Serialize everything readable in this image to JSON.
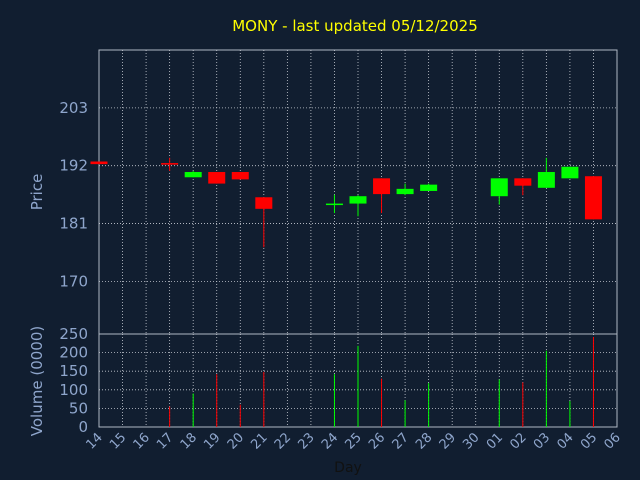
{
  "chart_data": [
    {
      "type": "candlestick",
      "title": "MONY - last updated 05/12/2025",
      "ylabel": "Price",
      "xlabel": "Day",
      "ylim": [
        160,
        214
      ],
      "yticks": [
        170,
        181,
        192,
        203
      ],
      "x": [
        "14",
        "15",
        "16",
        "17",
        "18",
        "19",
        "20",
        "21",
        "22",
        "23",
        "24",
        "25",
        "26",
        "27",
        "28",
        "29",
        "30",
        "01",
        "02",
        "03",
        "04",
        "05",
        "06"
      ],
      "up_color": "#00ff00",
      "down_color": "#ff0000",
      "grid": true,
      "candles": [
        {
          "day": "14",
          "open": 192.8,
          "high": 192.8,
          "low": 192.3,
          "close": 192.3
        },
        {
          "day": "17",
          "open": 192.5,
          "high": 193.5,
          "low": 191.0,
          "close": 192.2
        },
        {
          "day": "18",
          "open": 189.8,
          "high": 191.0,
          "low": 189.8,
          "close": 190.8
        },
        {
          "day": "19",
          "open": 190.8,
          "high": 190.8,
          "low": 188.6,
          "close": 188.6
        },
        {
          "day": "20",
          "open": 190.8,
          "high": 190.8,
          "low": 189.4,
          "close": 189.4
        },
        {
          "day": "21",
          "open": 186.0,
          "high": 186.0,
          "low": 176.5,
          "close": 183.8
        },
        {
          "day": "24",
          "open": 184.6,
          "high": 186.5,
          "low": 183.0,
          "close": 184.8
        },
        {
          "day": "25",
          "open": 184.8,
          "high": 186.4,
          "low": 182.4,
          "close": 186.2
        },
        {
          "day": "26",
          "open": 189.6,
          "high": 189.6,
          "low": 183.0,
          "close": 186.6
        },
        {
          "day": "27",
          "open": 186.6,
          "high": 188.6,
          "low": 186.4,
          "close": 187.6
        },
        {
          "day": "28",
          "open": 187.2,
          "high": 188.6,
          "low": 187.2,
          "close": 188.4
        },
        {
          "day": "01",
          "open": 186.2,
          "high": 189.6,
          "low": 184.6,
          "close": 189.6
        },
        {
          "day": "02",
          "open": 189.6,
          "high": 189.6,
          "low": 186.4,
          "close": 188.2
        },
        {
          "day": "03",
          "open": 187.8,
          "high": 193.5,
          "low": 187.8,
          "close": 190.8
        },
        {
          "day": "04",
          "open": 189.6,
          "high": 191.8,
          "low": 189.6,
          "close": 191.8
        },
        {
          "day": "05",
          "open": 190.0,
          "high": 190.0,
          "low": 181.8,
          "close": 181.8
        }
      ]
    },
    {
      "type": "bar",
      "ylabel": "Volume (0000)",
      "xlabel": "Day",
      "ylim": [
        0,
        250
      ],
      "yticks": [
        0,
        50,
        100,
        150,
        200,
        250
      ],
      "x": [
        "14",
        "15",
        "16",
        "17",
        "18",
        "19",
        "20",
        "21",
        "22",
        "23",
        "24",
        "25",
        "26",
        "27",
        "28",
        "29",
        "30",
        "01",
        "02",
        "03",
        "04",
        "05",
        "06"
      ],
      "bars": [
        {
          "day": "17",
          "value": 55,
          "color": "#ff0000"
        },
        {
          "day": "18",
          "value": 90,
          "color": "#00ff00"
        },
        {
          "day": "19",
          "value": 142,
          "color": "#ff0000"
        },
        {
          "day": "20",
          "value": 60,
          "color": "#ff0000"
        },
        {
          "day": "21",
          "value": 148,
          "color": "#ff0000"
        },
        {
          "day": "24",
          "value": 142,
          "color": "#00ff00"
        },
        {
          "day": "25",
          "value": 218,
          "color": "#00ff00"
        },
        {
          "day": "26",
          "value": 130,
          "color": "#ff0000"
        },
        {
          "day": "27",
          "value": 72,
          "color": "#00ff00"
        },
        {
          "day": "28",
          "value": 118,
          "color": "#00ff00"
        },
        {
          "day": "01",
          "value": 128,
          "color": "#00ff00"
        },
        {
          "day": "02",
          "value": 120,
          "color": "#ff0000"
        },
        {
          "day": "03",
          "value": 205,
          "color": "#00ff00"
        },
        {
          "day": "04",
          "value": 70,
          "color": "#00ff00"
        },
        {
          "day": "05",
          "value": 242,
          "color": "#ff0000"
        }
      ]
    }
  ],
  "colors": {
    "background": "#111e30",
    "title": "#ffff00",
    "axis_text": "#8fa6cc",
    "frame": "#b0b8c4",
    "grid": "#c8ccd4"
  }
}
